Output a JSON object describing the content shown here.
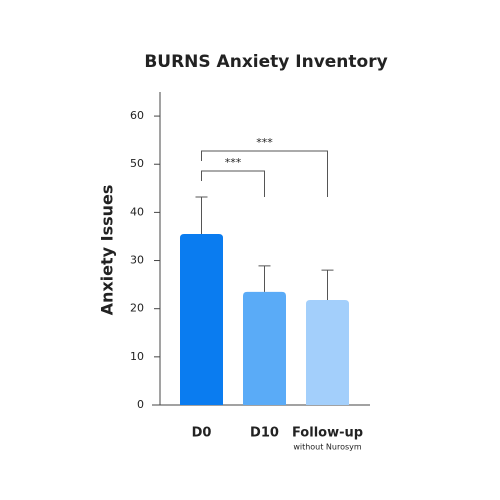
{
  "chart_data": {
    "type": "bar",
    "title": "BURNS Anxiety Inventory",
    "y_label": "Anxiety Issues",
    "categories": [
      "D0",
      "D10",
      "Follow-up"
    ],
    "category_sublabels": [
      null,
      null,
      "without Nurosym"
    ],
    "values": [
      35.5,
      23.5,
      21.8
    ],
    "errors": [
      7.7,
      5.4,
      6.2
    ],
    "colors": [
      "#0a7cf0",
      "#5aabf7",
      "#a3cffb"
    ],
    "ylim": [
      0,
      65
    ],
    "yticks": [
      0,
      10,
      20,
      30,
      40,
      50,
      60
    ],
    "significance": [
      {
        "label": "***",
        "pair": [
          "D0",
          "D10"
        ]
      },
      {
        "label": "***",
        "pair": [
          "D0",
          "Follow-up"
        ]
      }
    ]
  }
}
